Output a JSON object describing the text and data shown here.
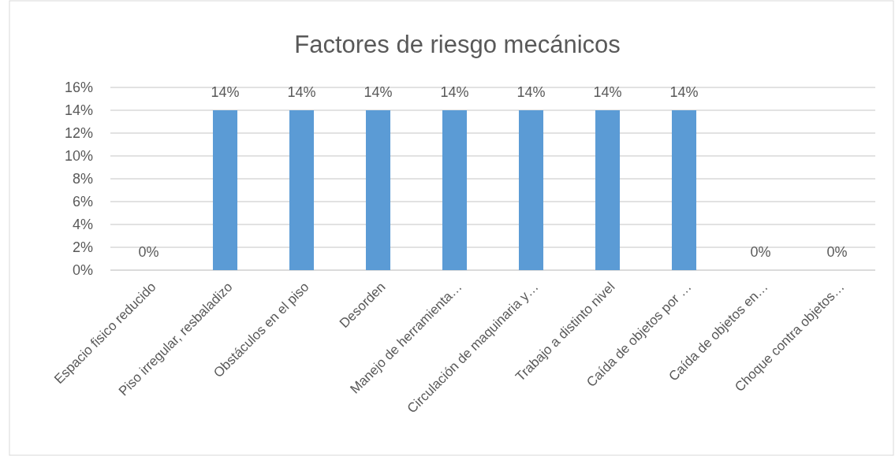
{
  "chart_data": {
    "type": "bar",
    "title": "Factores de riesgo mecánicos",
    "categories": [
      "Espacio fisico reducido",
      "Piso irregular, resbaladizo",
      "Obstáculos en el piso",
      "Desorden",
      "Manejo de herramienta…",
      "Circulación de maquinaria y…",
      "Trabajo a distinto nivel",
      "Caída de objetos por …",
      "Caída de objetos en…",
      "Choque contra objetos…"
    ],
    "values": [
      0,
      14,
      14,
      14,
      14,
      14,
      14,
      14,
      0,
      0
    ],
    "value_labels": [
      "0%",
      "14%",
      "14%",
      "14%",
      "14%",
      "14%",
      "14%",
      "14%",
      "0%",
      "0%"
    ],
    "color": "#5b9bd5",
    "ylim": [
      0,
      16
    ],
    "yticks": [
      {
        "value": 0,
        "label": "0%"
      },
      {
        "value": 2,
        "label": "2%"
      },
      {
        "value": 4,
        "label": "4%"
      },
      {
        "value": 6,
        "label": "6%"
      },
      {
        "value": 8,
        "label": "8%"
      },
      {
        "value": 10,
        "label": "10%"
      },
      {
        "value": 12,
        "label": "12%"
      },
      {
        "value": 14,
        "label": "14%"
      },
      {
        "value": 16,
        "label": "16%"
      }
    ],
    "grid": "y"
  }
}
